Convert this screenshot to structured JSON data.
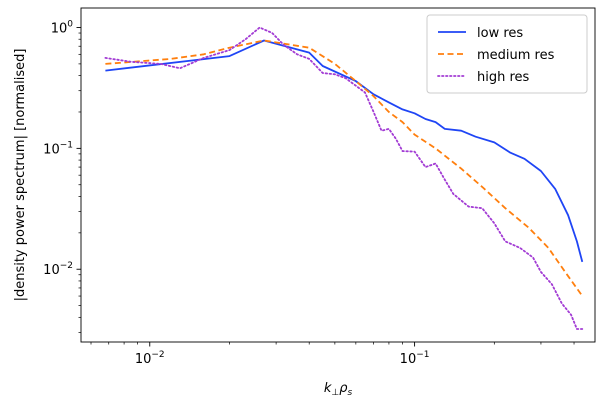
{
  "chart_data": {
    "type": "line",
    "xlabel": "k⊥ρs",
    "xlabel_parts": {
      "base1": "k",
      "sub1": "⊥",
      "base2": "ρ",
      "sub2": "s"
    },
    "ylabel": "|density power spectrum| [normalised]",
    "xscale": "log",
    "yscale": "log",
    "xlim": [
      0.0055,
      0.48
    ],
    "ylim": [
      0.0025,
      1.45
    ],
    "grid": false,
    "legend_position": "top-right",
    "x_ticks": [
      {
        "value": 0.01,
        "base": "10",
        "exp": "−2"
      },
      {
        "value": 0.1,
        "base": "10",
        "exp": "−1"
      }
    ],
    "y_ticks": [
      {
        "value": 0.01,
        "base": "10",
        "exp": "−2"
      },
      {
        "value": 0.1,
        "base": "10",
        "exp": "−1"
      },
      {
        "value": 1,
        "base": "10",
        "exp": "0"
      }
    ],
    "series": [
      {
        "name": "low res",
        "color": "#1f45f5",
        "dash": "solid",
        "x": [
          0.0068,
          0.02,
          0.027,
          0.04,
          0.045,
          0.06,
          0.07,
          0.08,
          0.09,
          0.1,
          0.11,
          0.12,
          0.13,
          0.15,
          0.17,
          0.2,
          0.23,
          0.26,
          0.3,
          0.34,
          0.38,
          0.41,
          0.43
        ],
        "y": [
          0.44,
          0.58,
          0.78,
          0.62,
          0.48,
          0.36,
          0.28,
          0.24,
          0.21,
          0.195,
          0.175,
          0.165,
          0.145,
          0.14,
          0.125,
          0.112,
          0.092,
          0.082,
          0.065,
          0.046,
          0.028,
          0.017,
          0.0115
        ]
      },
      {
        "name": "medium res",
        "color": "#ff7f0e",
        "dash": "dashed",
        "x": [
          0.0068,
          0.012,
          0.016,
          0.02,
          0.027,
          0.04,
          0.05,
          0.06,
          0.07,
          0.08,
          0.09,
          0.1,
          0.12,
          0.15,
          0.18,
          0.22,
          0.27,
          0.32,
          0.37,
          0.43
        ],
        "y": [
          0.5,
          0.55,
          0.6,
          0.68,
          0.78,
          0.68,
          0.5,
          0.36,
          0.27,
          0.2,
          0.165,
          0.13,
          0.1,
          0.068,
          0.048,
          0.032,
          0.022,
          0.015,
          0.0095,
          0.006
        ]
      },
      {
        "name": "high res",
        "color": "#a23bd4",
        "dash": "dotted",
        "x": [
          0.0068,
          0.0085,
          0.011,
          0.013,
          0.016,
          0.02,
          0.023,
          0.026,
          0.029,
          0.032,
          0.036,
          0.04,
          0.045,
          0.05,
          0.055,
          0.06,
          0.065,
          0.07,
          0.075,
          0.08,
          0.085,
          0.09,
          0.1,
          0.11,
          0.12,
          0.13,
          0.14,
          0.16,
          0.18,
          0.2,
          0.22,
          0.25,
          0.28,
          0.3,
          0.33,
          0.36,
          0.39,
          0.41,
          0.43
        ],
        "y": [
          0.56,
          0.52,
          0.5,
          0.46,
          0.56,
          0.65,
          0.8,
          1.0,
          0.9,
          0.72,
          0.6,
          0.55,
          0.42,
          0.41,
          0.38,
          0.33,
          0.29,
          0.2,
          0.14,
          0.145,
          0.12,
          0.095,
          0.094,
          0.07,
          0.075,
          0.055,
          0.042,
          0.033,
          0.032,
          0.024,
          0.017,
          0.015,
          0.0125,
          0.0095,
          0.0075,
          0.0052,
          0.0042,
          0.0032,
          0.0032
        ]
      }
    ]
  }
}
